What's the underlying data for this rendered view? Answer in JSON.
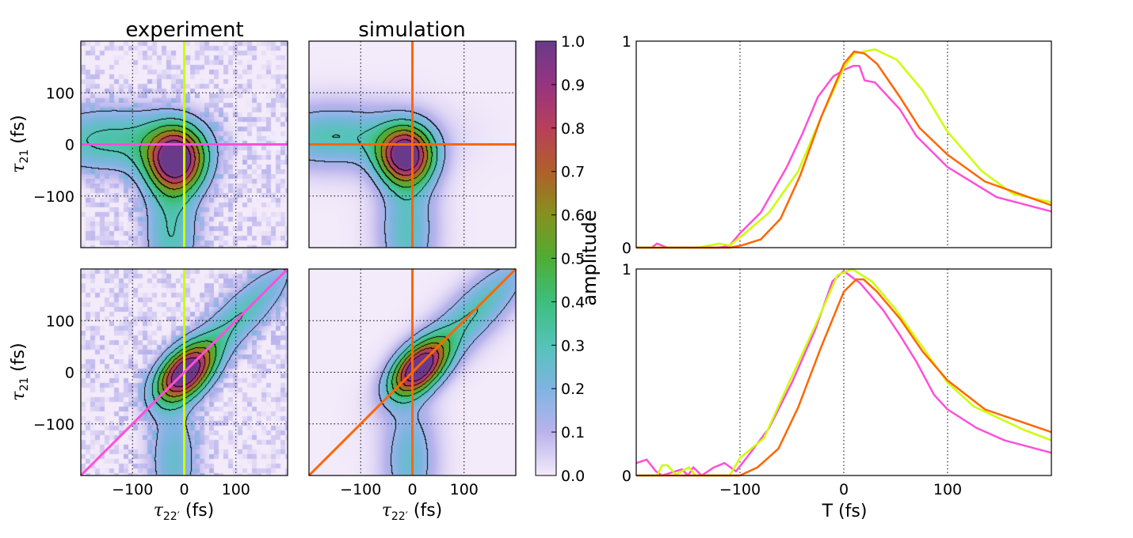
{
  "colormap": {
    "label": "amplitude",
    "ticks": [
      "0.0",
      "0.1",
      "0.2",
      "0.3",
      "0.4",
      "0.5",
      "0.6",
      "0.7",
      "0.8",
      "0.9",
      "1.0"
    ],
    "range": [
      0,
      1
    ],
    "stops": [
      "#f3eafa",
      "#b9b3ec",
      "#7fb4e2",
      "#55c3b8",
      "#3dbf7e",
      "#4fad35",
      "#85921e",
      "#b0602a",
      "#b8405a",
      "#973480",
      "#6a3a8a"
    ]
  },
  "colors": {
    "yellow": "#ccff00",
    "magenta": "#ff4fd8",
    "orange": "#ff6600"
  },
  "chart_data": [
    {
      "type": "heatmap",
      "title": "experiment",
      "row": "top",
      "xlim": [
        -200,
        200
      ],
      "ylim": [
        -200,
        200
      ],
      "yticks": [
        "100",
        "0",
        "−100"
      ],
      "ylabel_sym": "τ",
      "ylabel_sub": "21",
      "ylabel_unit": "(fs)",
      "cut_lines": [
        {
          "type": "vertical",
          "at": 0,
          "color": "yellow"
        },
        {
          "type": "horizontal",
          "at": 0,
          "color": "magenta"
        }
      ],
      "grid": true
    },
    {
      "type": "heatmap",
      "title": "simulation",
      "row": "top",
      "xlim": [
        -200,
        200
      ],
      "ylim": [
        -200,
        200
      ],
      "cut_lines": [
        {
          "type": "vertical",
          "at": 0,
          "color": "orange"
        },
        {
          "type": "horizontal",
          "at": 0,
          "color": "orange"
        }
      ],
      "grid": true
    },
    {
      "type": "heatmap",
      "row": "bottom",
      "xlim": [
        -200,
        200
      ],
      "ylim": [
        -200,
        200
      ],
      "yticks": [
        "100",
        "0",
        "−100"
      ],
      "xticks": [
        "−100",
        "0",
        "100"
      ],
      "ylabel_sym": "τ",
      "ylabel_sub": "21",
      "ylabel_unit": "(fs)",
      "xlabel_sym": "τ",
      "xlabel_sub": "22′",
      "xlabel_unit": "(fs)",
      "cut_lines": [
        {
          "type": "vertical",
          "at": 0,
          "color": "yellow"
        },
        {
          "type": "diagonal",
          "color": "magenta"
        }
      ],
      "grid": true
    },
    {
      "type": "heatmap",
      "row": "bottom",
      "xlim": [
        -200,
        200
      ],
      "ylim": [
        -200,
        200
      ],
      "xticks": [
        "−100",
        "0",
        "100"
      ],
      "xlabel_sym": "τ",
      "xlabel_sub": "22′",
      "xlabel_unit": "(fs)",
      "cut_lines": [
        {
          "type": "vertical",
          "at": 0,
          "color": "orange"
        },
        {
          "type": "diagonal",
          "color": "orange"
        }
      ],
      "grid": true
    },
    {
      "type": "line",
      "row": "top",
      "xlim": [
        -200,
        200
      ],
      "ylim": [
        0,
        1
      ],
      "yticks": [
        "0",
        "1"
      ],
      "grid": "vertical",
      "series": [
        {
          "color": "magenta",
          "x": [
            -200,
            -185,
            -180,
            -170,
            -120,
            -110,
            -100,
            -80,
            -55,
            -40,
            -25,
            -10,
            0,
            9,
            15,
            20,
            30,
            54,
            70,
            100,
            147,
            200
          ],
          "y": [
            0,
            0,
            0.02,
            0,
            0,
            0.01,
            0.07,
            0.17,
            0.39,
            0.55,
            0.73,
            0.83,
            0.86,
            0.88,
            0.88,
            0.81,
            0.8,
            0.67,
            0.54,
            0.39,
            0.245,
            0.175
          ]
        },
        {
          "color": "yellow",
          "x": [
            -200,
            -140,
            -120,
            -110,
            -99,
            -72,
            -44,
            -22,
            0,
            10,
            30,
            51,
            76,
            100,
            133,
            163,
            200
          ],
          "y": [
            0,
            0,
            0.02,
            0.01,
            0.054,
            0.17,
            0.37,
            0.63,
            0.87,
            0.94,
            0.96,
            0.91,
            0.76,
            0.56,
            0.37,
            0.26,
            0.22
          ]
        },
        {
          "color": "orange",
          "x": [
            -200,
            -110,
            -99,
            -80,
            -61,
            -42,
            -22,
            0,
            10,
            20,
            32,
            54,
            73,
            100,
            136,
            200
          ],
          "y": [
            0,
            0,
            0.01,
            0.04,
            0.14,
            0.35,
            0.63,
            0.89,
            0.95,
            0.94,
            0.89,
            0.73,
            0.58,
            0.45,
            0.32,
            0.205
          ]
        }
      ]
    },
    {
      "type": "line",
      "row": "bottom",
      "xlim": [
        -200,
        200
      ],
      "ylim": [
        0,
        1
      ],
      "yticks": [
        "0",
        "1"
      ],
      "xticks": [
        "−100",
        "0",
        "100"
      ],
      "xlabel": "T (fs)",
      "grid": "vertical",
      "series": [
        {
          "color": "magenta",
          "x": [
            -200,
            -190,
            -181,
            -175,
            -156,
            -150,
            -145,
            -137,
            -125,
            -115,
            -104,
            -93,
            -72,
            -50,
            -28,
            -11,
            0,
            16,
            38,
            54,
            70,
            87,
            100,
            128,
            155,
            200
          ],
          "y": [
            0.06,
            0.077,
            0.02,
            0,
            0.03,
            0.0,
            0.04,
            0,
            0.04,
            0.06,
            0.02,
            0.09,
            0.23,
            0.45,
            0.7,
            0.94,
            0.99,
            0.93,
            0.8,
            0.68,
            0.55,
            0.39,
            0.32,
            0.23,
            0.17,
            0.11
          ]
        },
        {
          "color": "yellow",
          "x": [
            -200,
            -180,
            -175,
            -170,
            -162,
            -149,
            -143,
            -110,
            -100,
            -77,
            -50,
            -28,
            -6,
            8,
            27,
            49,
            76,
            100,
            125,
            174,
            200
          ],
          "y": [
            0,
            0,
            0.05,
            0.05,
            0.005,
            0.04,
            0,
            0,
            0.085,
            0.18,
            0.48,
            0.72,
            0.97,
            1.0,
            0.94,
            0.81,
            0.62,
            0.45,
            0.335,
            0.22,
            0.17
          ]
        },
        {
          "color": "orange",
          "x": [
            -200,
            -100,
            -83,
            -63,
            -44,
            -22,
            0,
            12,
            19,
            32,
            54,
            76,
            100,
            136,
            200
          ],
          "y": [
            0,
            0,
            0.04,
            0.13,
            0.33,
            0.62,
            0.89,
            0.95,
            0.95,
            0.89,
            0.76,
            0.6,
            0.46,
            0.32,
            0.21
          ]
        }
      ]
    }
  ]
}
